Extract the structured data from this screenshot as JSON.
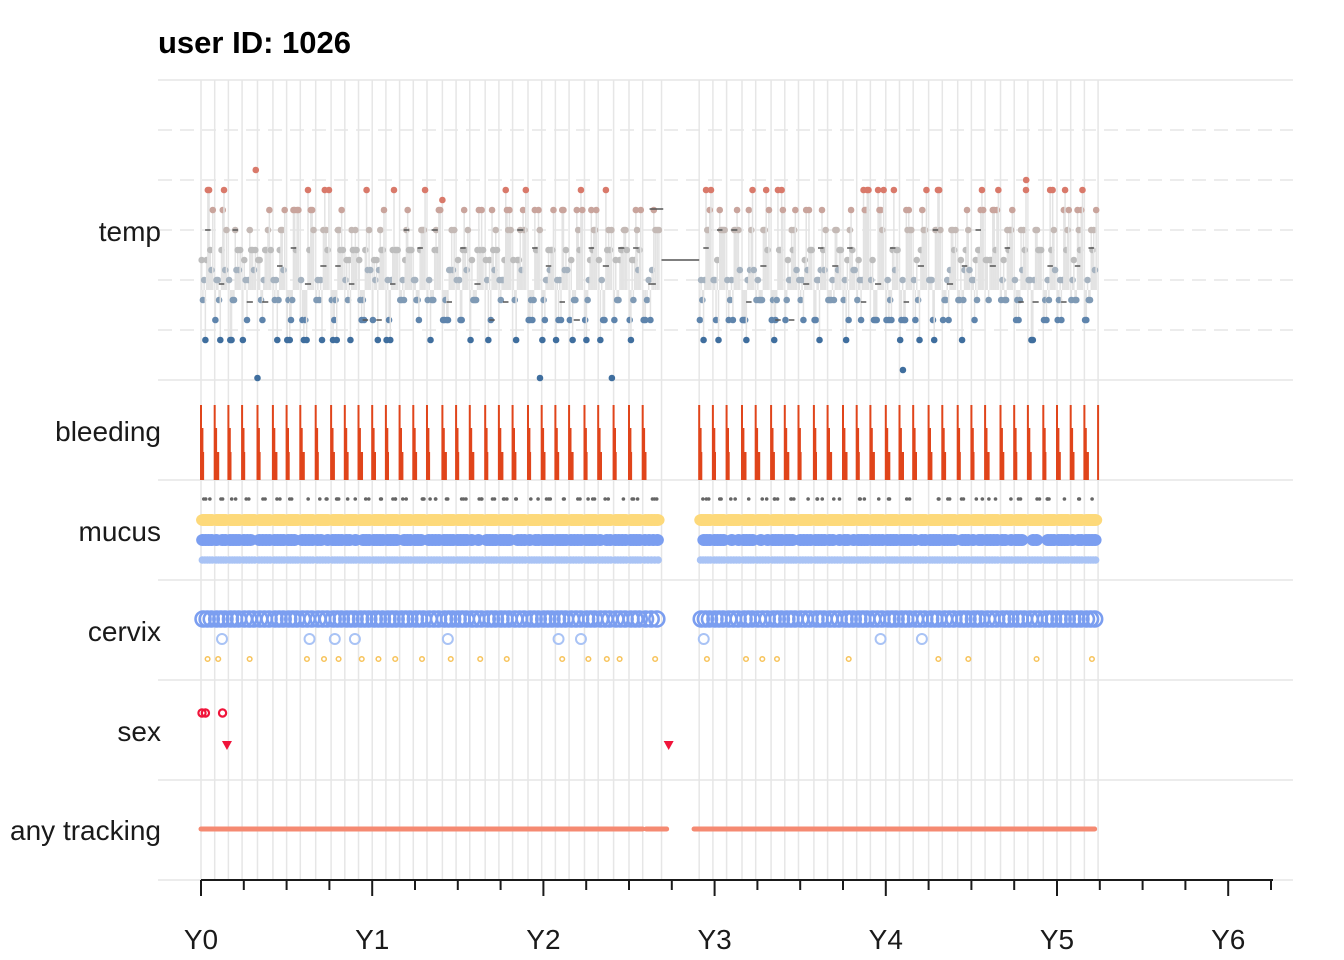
{
  "chart_data": {
    "type": "scatter",
    "title": "user ID:  1026",
    "lanes": [
      "temp",
      "bleeding",
      "mucus",
      "cervix",
      "sex",
      "any tracking"
    ],
    "x_axis": {
      "tick_labels": [
        "Y0",
        "Y1",
        "Y2",
        "Y3",
        "Y4",
        "Y5",
        "Y6"
      ],
      "range_years": [
        -0.1,
        6.3
      ],
      "minor_ticks_per_year": 4
    },
    "grid": true,
    "tracking_segments_years": [
      [
        0.0,
        2.58
      ],
      [
        2.6,
        2.72
      ],
      [
        2.88,
        5.22
      ]
    ],
    "cycle_starts_years": [
      0.0,
      0.08,
      0.16,
      0.24,
      0.33,
      0.42,
      0.5,
      0.58,
      0.67,
      0.76,
      0.84,
      0.92,
      1.0,
      1.08,
      1.16,
      1.24,
      1.32,
      1.41,
      1.49,
      1.57,
      1.66,
      1.74,
      1.82,
      1.91,
      1.99,
      2.07,
      2.15,
      2.24,
      2.32,
      2.41,
      2.5,
      2.58,
      2.69,
      2.91,
      2.99,
      3.07,
      3.16,
      3.24,
      3.33,
      3.41,
      3.49,
      3.58,
      3.66,
      3.75,
      3.83,
      3.91,
      4.0,
      4.08,
      4.16,
      4.25,
      4.33,
      4.42,
      4.5,
      4.58,
      4.67,
      4.75,
      4.83,
      4.92,
      5.0,
      5.08,
      5.16,
      5.24
    ],
    "sex_events": {
      "circle_markers_years": [
        0.0,
        0.02,
        0.12
      ],
      "triangle_markers_years": [
        0.14,
        2.72
      ]
    },
    "colors": {
      "temp_high": "#d9796a",
      "temp_mid": "#bdbdbd",
      "temp_low": "#3f6e9e",
      "bleeding": "#e0451b",
      "mucus_dots": "#666666",
      "mucus_yellow": "#fdd97a",
      "mucus_blue": "#7b9ef0",
      "mucus_light_blue": "#a9c3f5",
      "cervix_blue": "#7b9ef0",
      "cervix_light_blue": "#a9c3f5",
      "cervix_yellow": "#f7c35a",
      "sex": "#f0143a",
      "tracking": "#f58a72",
      "grid": "#e6e6e6"
    }
  }
}
